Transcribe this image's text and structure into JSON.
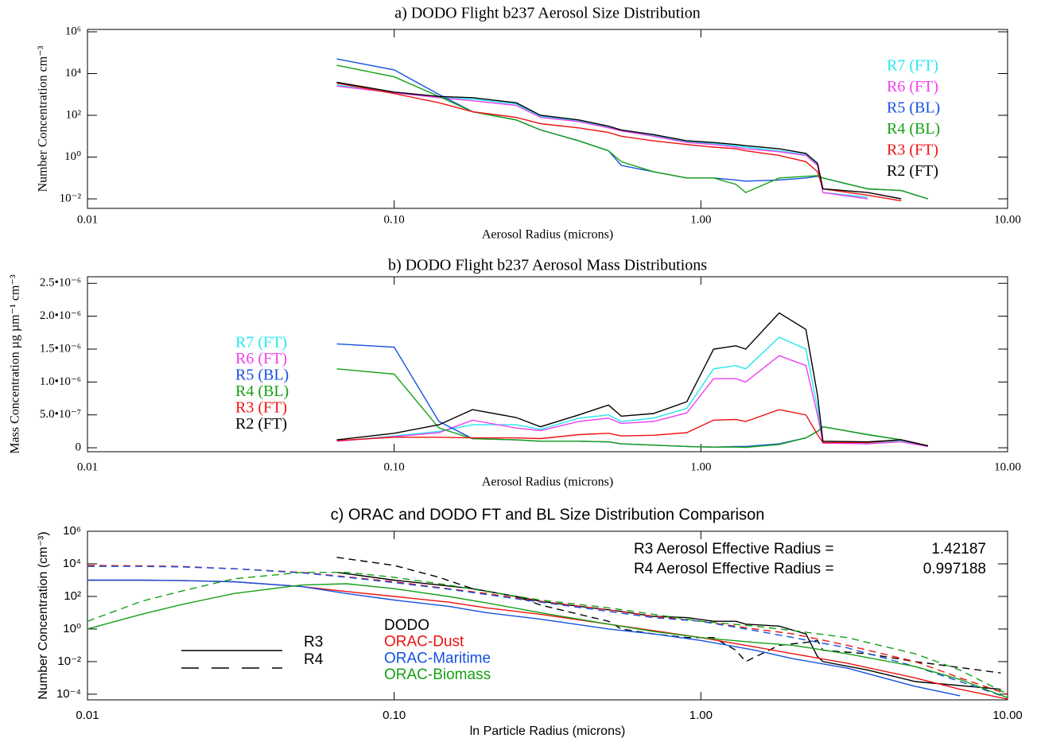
{
  "chart_data": [
    {
      "type": "line",
      "title": "a) DODO Flight b237 Aerosol Size Distribution",
      "xlabel": "Aerosol Radius (microns)",
      "ylabel": "Number Concentration cm⁻³",
      "xlog": true,
      "ylog": true,
      "legend": "right",
      "xlim": [
        0.01,
        10
      ],
      "ylim": [
        0.0035,
        1300000
      ],
      "xticks": [
        {
          "value": 0.01,
          "label": "0.01"
        },
        {
          "value": 0.1,
          "label": "0.10"
        },
        {
          "value": 1,
          "label": "1.00"
        },
        {
          "value": 10,
          "label": "10.00"
        }
      ],
      "yticks": [
        {
          "value": 0.01,
          "label": "10⁻²"
        },
        {
          "value": 1,
          "label": "10⁰"
        },
        {
          "value": 100,
          "label": "10²"
        },
        {
          "value": 10000,
          "label": "10⁴"
        },
        {
          "value": 1000000,
          "label": "10⁶"
        }
      ],
      "x": [
        0.065,
        0.1,
        0.14,
        0.18,
        0.25,
        0.3,
        0.4,
        0.5,
        0.55,
        0.7,
        0.9,
        1.1,
        1.3,
        1.4,
        1.8,
        2.2,
        2.4,
        2.5,
        3.5,
        4.5,
        5.5
      ],
      "series": [
        {
          "name": "R7 (FT)",
          "color": "#22e8f0",
          "values": [
            2800,
            1200,
            700,
            600,
            350,
            90,
            55,
            28,
            20,
            11,
            5.5,
            4.5,
            3.5,
            3,
            2,
            1.3,
            0.45,
            0.02,
            0.012,
            null,
            null
          ]
        },
        {
          "name": "R6 (FT)",
          "color": "#f040f0",
          "values": [
            2500,
            1200,
            700,
            500,
            300,
            80,
            50,
            25,
            18,
            10,
            5,
            4,
            3,
            2.5,
            1.8,
            1.2,
            0.4,
            0.02,
            0.01,
            null,
            null
          ]
        },
        {
          "name": "R5 (BL)",
          "color": "#1450e0",
          "values": [
            50000,
            15000,
            1000,
            150,
            60,
            20,
            6,
            2,
            0.4,
            0.2,
            0.1,
            0.1,
            0.08,
            0.07,
            0.08,
            0.1,
            0.12,
            0.1,
            0.03,
            0.025,
            0.01
          ]
        },
        {
          "name": "R4 (BL)",
          "color": "#14a014",
          "values": [
            25000,
            7000,
            800,
            150,
            60,
            20,
            6,
            2,
            0.6,
            0.2,
            0.1,
            0.1,
            0.05,
            0.02,
            0.1,
            0.12,
            0.13,
            0.1,
            0.03,
            0.025,
            0.01
          ]
        },
        {
          "name": "R3 (FT)",
          "color": "#ee1111",
          "values": [
            3500,
            1100,
            400,
            150,
            80,
            40,
            25,
            15,
            10,
            6,
            4,
            3,
            2.5,
            2,
            1.2,
            0.6,
            0.2,
            0.03,
            0.015,
            0.008,
            null
          ]
        },
        {
          "name": "R2 (FT)",
          "color": "#000000",
          "values": [
            3800,
            1300,
            800,
            700,
            400,
            100,
            60,
            30,
            20,
            12,
            6,
            5,
            4,
            3.5,
            2.5,
            1.5,
            0.5,
            0.03,
            0.02,
            0.01,
            null
          ]
        }
      ]
    },
    {
      "type": "line",
      "title": "b) DODO Flight b237 Aerosol Mass Distributions",
      "xlabel": "Aerosol Radius (microns)",
      "ylabel": "Mass Concentration µg µm⁻¹ cm⁻³",
      "xlog": true,
      "ylog": false,
      "legend": "left",
      "xlim": [
        0.01,
        10
      ],
      "ylim": [
        -6e-08,
        2.6e-06
      ],
      "xticks": [
        {
          "value": 0.01,
          "label": "0.01"
        },
        {
          "value": 0.1,
          "label": "0.10"
        },
        {
          "value": 1,
          "label": "1.00"
        },
        {
          "value": 10,
          "label": "10.00"
        }
      ],
      "yticks": [
        0,
        {
          "value": 5e-07,
          "label": "5.0•10⁻⁷"
        },
        {
          "value": 1e-06,
          "label": "1.0•10⁻⁶"
        },
        {
          "value": 1.5e-06,
          "label": "1.5•10⁻⁶"
        },
        {
          "value": 2e-06,
          "label": "2.0•10⁻⁶"
        },
        {
          "value": 2.5e-06,
          "label": "2.5•10⁻⁶"
        }
      ],
      "x": [
        0.065,
        0.1,
        0.14,
        0.18,
        0.25,
        0.3,
        0.4,
        0.5,
        0.55,
        0.7,
        0.9,
        1.1,
        1.3,
        1.4,
        1.8,
        2.2,
        2.4,
        2.5,
        3.5,
        4.5,
        5.5
      ],
      "series": [
        {
          "name": "R7 (FT)",
          "color": "#22e8f0",
          "values": [
            1e-07,
            1.8e-07,
            2.5e-07,
            3.5e-07,
            3.5e-07,
            2.8e-07,
            4.5e-07,
            5e-07,
            4e-07,
            4.5e-07,
            6e-07,
            1.2e-06,
            1.25e-06,
            1.2e-06,
            1.68e-06,
            1.5e-06,
            6e-07,
            8e-08,
            7e-08,
            1e-07,
            2e-08
          ]
        },
        {
          "name": "R6 (FT)",
          "color": "#f040f0",
          "values": [
            1e-07,
            1.7e-07,
            2.3e-07,
            4.2e-07,
            3e-07,
            2.6e-07,
            4e-07,
            4.5e-07,
            3.7e-07,
            4e-07,
            5.3e-07,
            1.05e-06,
            1.05e-06,
            1e-06,
            1.4e-06,
            1.25e-06,
            5e-07,
            7e-08,
            6e-08,
            9e-08,
            2e-08
          ]
        },
        {
          "name": "R5 (BL)",
          "color": "#1450e0",
          "values": [
            1.58e-06,
            1.53e-06,
            4e-07,
            1.4e-07,
            1.2e-07,
            1e-07,
            1e-07,
            9e-08,
            6e-08,
            4e-08,
            2e-08,
            1e-08,
            2e-08,
            2e-08,
            6e-08,
            1.5e-07,
            2.5e-07,
            3.2e-07,
            2e-07,
            1.2e-07,
            3e-08
          ]
        },
        {
          "name": "R4 (BL)",
          "color": "#14a014",
          "values": [
            1.2e-06,
            1.12e-06,
            3e-07,
            1.4e-07,
            1.2e-07,
            1e-07,
            1e-07,
            9e-08,
            6e-08,
            4e-08,
            2e-08,
            1e-08,
            1e-08,
            5e-09,
            5e-08,
            1.5e-07,
            2.5e-07,
            3.2e-07,
            2e-07,
            1.2e-07,
            3e-08
          ]
        },
        {
          "name": "R3 (FT)",
          "color": "#ee1111",
          "values": [
            1.1e-07,
            1.6e-07,
            1.6e-07,
            1.5e-07,
            1.5e-07,
            1.4e-07,
            2e-07,
            2.2e-07,
            1.8e-07,
            1.9e-07,
            2.3e-07,
            4.2e-07,
            4.3e-07,
            4e-07,
            5.8e-07,
            5e-07,
            2e-07,
            8e-08,
            8e-08,
            1.2e-07,
            3e-08
          ]
        },
        {
          "name": "R2 (FT)",
          "color": "#000000",
          "values": [
            1.2e-07,
            2.2e-07,
            3.5e-07,
            5.8e-07,
            4.6e-07,
            3.2e-07,
            5e-07,
            6.5e-07,
            4.8e-07,
            5.2e-07,
            7e-07,
            1.5e-06,
            1.55e-06,
            1.5e-06,
            2.05e-06,
            1.8e-06,
            8e-07,
            1e-07,
            9e-08,
            1.2e-07,
            3e-08
          ]
        }
      ]
    },
    {
      "type": "line",
      "title": "c) ORAC and DODO FT and BL Size Distribution Comparison",
      "xlabel": "ln Particle Radius (microns)",
      "ylabel": "Number Concentration (cm⁻³)",
      "xlog": true,
      "ylog": true,
      "legend": "center",
      "xlim": [
        0.01,
        10
      ],
      "ylim": [
        4.5e-05,
        1000000
      ],
      "xticks": [
        {
          "value": 0.01,
          "label": "0.01"
        },
        {
          "value": 0.1,
          "label": "0.10"
        },
        {
          "value": 1,
          "label": "1.00"
        },
        {
          "value": 10,
          "label": "10.00"
        }
      ],
      "yticks": [
        {
          "value": 0.0001,
          "label": "10⁻⁴"
        },
        {
          "value": 0.01,
          "label": "10⁻²"
        },
        {
          "value": 1,
          "label": "10⁰"
        },
        {
          "value": 100,
          "label": "10²"
        },
        {
          "value": 10000,
          "label": "10⁴"
        },
        {
          "value": 1000000,
          "label": "10⁶"
        }
      ],
      "annotations": [
        {
          "label": "R3 Aerosol Effective Radius =",
          "value": 1.42187
        },
        {
          "label": "R4 Aerosol Effective Radius =",
          "value": 0.997188
        }
      ],
      "x": [
        0.01,
        0.015,
        0.02,
        0.03,
        0.05,
        0.07,
        0.1,
        0.15,
        0.2,
        0.3,
        0.5,
        0.7,
        1,
        1.5,
        2,
        3,
        5,
        7,
        10
      ],
      "series": [
        {
          "name": "DODO",
          "line": "R3",
          "dash": "solid",
          "color": "#000000",
          "x": [
            0.065,
            0.1,
            0.14,
            0.18,
            0.25,
            0.3,
            0.4,
            0.5,
            0.55,
            0.7,
            0.9,
            1.1,
            1.3,
            1.4,
            1.8,
            2.2,
            2.4,
            2.5,
            3.5,
            5,
            9.5
          ],
          "values": [
            3000,
            1000,
            500,
            300,
            100,
            50,
            25,
            15,
            12,
            6,
            5,
            3,
            3,
            2,
            1.5,
            0.5,
            0.02,
            0.01,
            0.003,
            0.0006,
            0.0002
          ]
        },
        {
          "name": "DODO",
          "line": "R4",
          "dash": "dashed",
          "color": "#000000",
          "x": [
            0.065,
            0.1,
            0.14,
            0.18,
            0.25,
            0.3,
            0.4,
            0.5,
            0.55,
            0.7,
            0.9,
            1.1,
            1.3,
            1.4,
            1.8,
            2.2,
            2.4,
            2.5,
            3.5,
            5,
            9.5
          ],
          "values": [
            25000,
            8000,
            1500,
            300,
            100,
            30,
            8,
            3,
            1,
            0.5,
            0.3,
            0.3,
            0.05,
            0.01,
            0.1,
            0.15,
            0.2,
            0.05,
            0.03,
            0.01,
            0.002
          ]
        },
        {
          "name": "ORAC-Dust",
          "line": "R3",
          "dash": "solid",
          "color": "#ee1111",
          "values": [
            1000,
            1000,
            950,
            800,
            400,
            200,
            100,
            45,
            20,
            8,
            2,
            0.8,
            0.3,
            0.08,
            0.03,
            0.008,
            0.001,
            0.0002,
            5e-05
          ]
        },
        {
          "name": "ORAC-Dust",
          "line": "R4",
          "dash": "dashed",
          "color": "#ee1111",
          "values": [
            8000,
            7500,
            7000,
            5000,
            3000,
            1600,
            800,
            300,
            150,
            50,
            15,
            6,
            3,
            1,
            0.5,
            0.1,
            0.01,
            0.001,
            0.0001
          ]
        },
        {
          "name": "ORAC-Maritime",
          "line": "R3",
          "dash": "solid",
          "color": "#1450e0",
          "values": [
            1000,
            1000,
            950,
            800,
            400,
            150,
            60,
            25,
            10,
            4,
            1,
            0.5,
            0.2,
            0.05,
            0.015,
            0.004,
            0.0003,
            8e-05,
            null
          ]
        },
        {
          "name": "ORAC-Maritime",
          "line": "R4",
          "dash": "dashed",
          "color": "#1450e0",
          "values": [
            7000,
            7000,
            6500,
            5000,
            2800,
            1500,
            700,
            280,
            130,
            45,
            12,
            5,
            3,
            0.8,
            0.3,
            0.07,
            0.005,
            0.0006,
            6e-05
          ]
        },
        {
          "name": "ORAC-Biomass",
          "line": "R3",
          "dash": "solid",
          "color": "#14a014",
          "values": [
            1,
            8,
            30,
            150,
            500,
            600,
            300,
            100,
            40,
            10,
            2,
            0.7,
            0.3,
            0.15,
            0.1,
            0.03,
            0.005,
            0.0008,
            6e-05
          ]
        },
        {
          "name": "ORAC-Biomass",
          "line": "R4",
          "dash": "dashed",
          "color": "#14a014",
          "values": [
            3,
            50,
            200,
            1200,
            3000,
            3000,
            1500,
            500,
            200,
            60,
            20,
            8,
            3,
            1.5,
            0.8,
            0.3,
            0.03,
            0.003,
            0.0001
          ]
        }
      ]
    }
  ]
}
